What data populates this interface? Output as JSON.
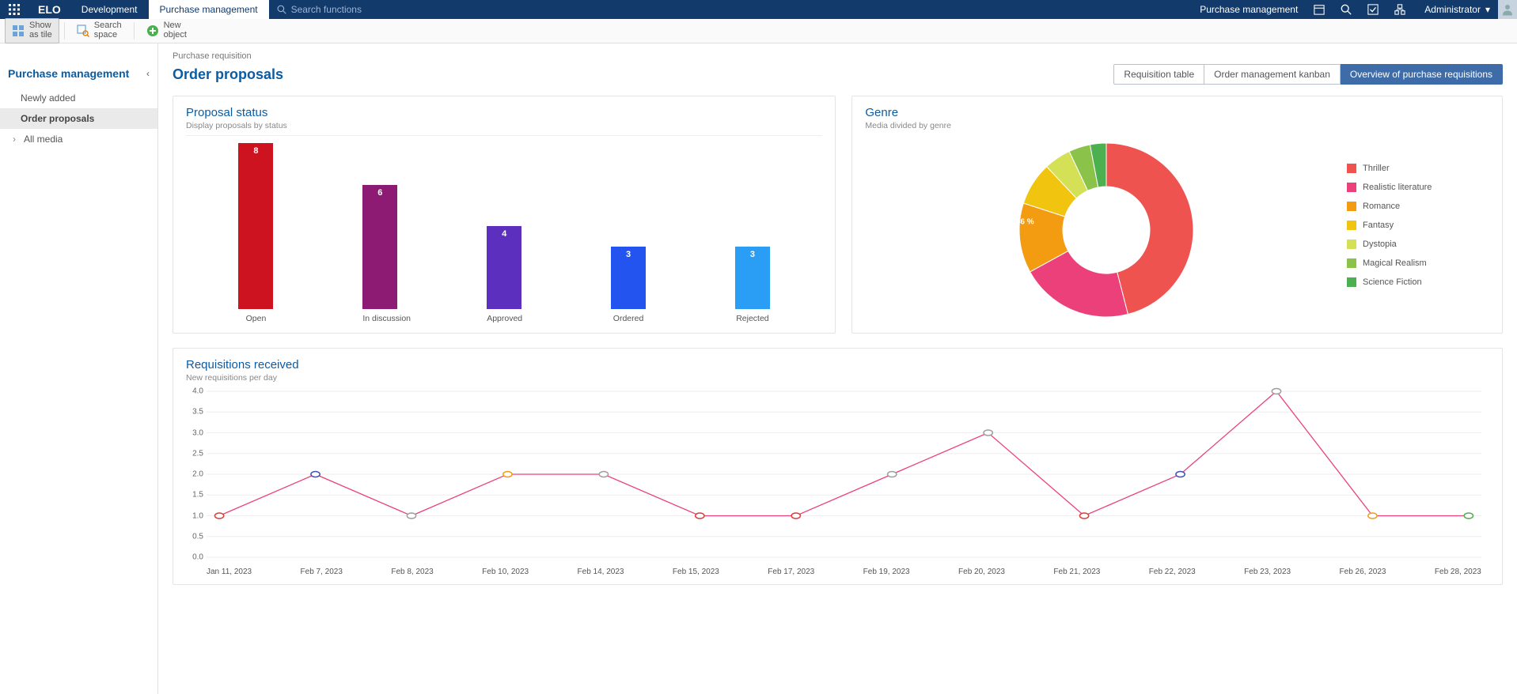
{
  "topbar": {
    "logo": "ELO",
    "tabs": [
      {
        "label": "Development",
        "active": false
      },
      {
        "label": "Purchase management",
        "active": true
      }
    ],
    "search_placeholder": "Search functions",
    "right_label": "Purchase management",
    "user": "Administrator"
  },
  "toolbar": {
    "show_tile": "Show\nas tile",
    "search_space": "Search\nspace",
    "new_object": "New\nobject"
  },
  "sidebar": {
    "title": "Purchase management",
    "items": [
      {
        "label": "Newly added",
        "active": false,
        "caret": false
      },
      {
        "label": "Order proposals",
        "active": true,
        "caret": false
      },
      {
        "label": "All media",
        "active": false,
        "caret": true
      }
    ]
  },
  "page": {
    "crumb": "Purchase requisition",
    "title": "Order proposals",
    "view_tabs": [
      {
        "label": "Requisition table",
        "active": false
      },
      {
        "label": "Order management kanban",
        "active": false
      },
      {
        "label": "Overview of purchase requisitions",
        "active": true
      }
    ]
  },
  "bar_chart": {
    "title": "Proposal status",
    "subtitle": "Display proposals by status",
    "max": 8,
    "bars": [
      {
        "label": "Open",
        "value": 8,
        "color": "#cd1220"
      },
      {
        "label": "In discussion",
        "value": 6,
        "color": "#8d1a73"
      },
      {
        "label": "Approved",
        "value": 4,
        "color": "#5c2fbf"
      },
      {
        "label": "Ordered",
        "value": 3,
        "color": "#2354ef"
      },
      {
        "label": "Rejected",
        "value": 3,
        "color": "#2a9df4"
      }
    ]
  },
  "donut": {
    "title": "Genre",
    "subtitle": "Media divided by genre",
    "slices": [
      {
        "label": "Thriller",
        "pct": 46,
        "color": "#ef5350",
        "show": true
      },
      {
        "label": "Realistic literature",
        "pct": 21,
        "color": "#ec407a",
        "show": true
      },
      {
        "label": "Romance",
        "pct": 13,
        "color": "#f39c12",
        "show": true
      },
      {
        "label": "Fantasy",
        "pct": 8,
        "color": "#f1c40f",
        "show": true
      },
      {
        "label": "Dystopia",
        "pct": 5,
        "color": "#d4e157",
        "show": false
      },
      {
        "label": "Magical Realism",
        "pct": 4,
        "color": "#8bc34a",
        "show": false
      },
      {
        "label": "Science Fiction",
        "pct": 3,
        "color": "#4caf50",
        "show": false
      }
    ],
    "radius_outer": 110,
    "radius_inner": 55
  },
  "line_chart": {
    "title": "Requisitions received",
    "subtitle": "New requisitions per day",
    "y_max": 4.0,
    "y_step": 0.5,
    "line_color": "#ec407a",
    "points": [
      {
        "x": "Jan 11, 2023",
        "y": 1,
        "marker": "#e53935"
      },
      {
        "x": "Feb 7, 2023",
        "y": 2,
        "marker": "#3f51b5"
      },
      {
        "x": "Feb 8, 2023",
        "y": 1,
        "marker": "#9e9e9e"
      },
      {
        "x": "Feb 10, 2023",
        "y": 2,
        "marker": "#f39c12"
      },
      {
        "x": "Feb 14, 2023",
        "y": 2,
        "marker": "#9e9e9e"
      },
      {
        "x": "Feb 15, 2023",
        "y": 1,
        "marker": "#e53935"
      },
      {
        "x": "Feb 17, 2023",
        "y": 1,
        "marker": "#e53935"
      },
      {
        "x": "Feb 19, 2023",
        "y": 2,
        "marker": "#9e9e9e"
      },
      {
        "x": "Feb 20, 2023",
        "y": 3,
        "marker": "#9e9e9e"
      },
      {
        "x": "Feb 21, 2023",
        "y": 1,
        "marker": "#e53935"
      },
      {
        "x": "Feb 22, 2023",
        "y": 2,
        "marker": "#3f51b5"
      },
      {
        "x": "Feb 23, 2023",
        "y": 4,
        "marker": "#9e9e9e"
      },
      {
        "x": "Feb 26, 2023",
        "y": 1,
        "marker": "#f39c12"
      },
      {
        "x": "Feb 28, 2023",
        "y": 1,
        "marker": "#4caf50"
      }
    ]
  }
}
